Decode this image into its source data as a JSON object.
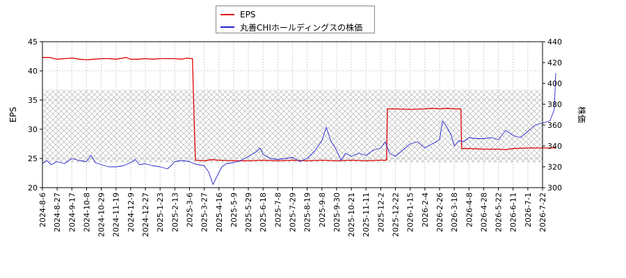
{
  "chart_data": {
    "type": "line",
    "title": "",
    "legend": {
      "placement": "top-center",
      "entries": [
        {
          "name": "EPS",
          "color": "#dd0000"
        },
        {
          "name": "丸善CHIホールディングスの株価",
          "color": "#2222cc"
        }
      ]
    },
    "left_axis": {
      "label": "EPS",
      "ylim": [
        20,
        45
      ],
      "ticks": [
        "20",
        "25",
        "30",
        "35",
        "40",
        "45"
      ]
    },
    "right_axis": {
      "label": "株価",
      "ylim": [
        300,
        440
      ],
      "ticks": [
        "300",
        "320",
        "340",
        "360",
        "380",
        "400",
        "420",
        "440"
      ]
    },
    "x_tick_labels": [
      "2024-8-6",
      "2024-8-27",
      "2024-9-17",
      "2024-10-8",
      "2024-10-29",
      "2024-11-19",
      "2024-12-9",
      "2024-12-27",
      "2025-1-23",
      "2025-2-13",
      "2025-3-6",
      "2025-3-27",
      "2025-4-16",
      "2025-5-9",
      "2025-5-29",
      "2025-6-18",
      "2025-7-8",
      "2025-7-29",
      "2025-8-19",
      "2025-9-8",
      "2025-9-30",
      "2025-10-21",
      "2025-11-11",
      "2025-12-2",
      "2025-12-22",
      "2026-1-15",
      "2026-2-4",
      "2026-2-26",
      "2026-3-18",
      "2026-4-8",
      "2026-4-28",
      "2026-5-22",
      "2026-6-11",
      "2026-7-1",
      "2026-7-22"
    ],
    "grid": true,
    "shaded_band": {
      "axis": "right",
      "from": 324,
      "to": 394
    },
    "series": [
      {
        "name": "EPS",
        "axis": "left",
        "color": "#dd0000",
        "points": [
          [
            0,
            42.3
          ],
          [
            0.5,
            42.3
          ],
          [
            1.0,
            42.0
          ],
          [
            1.5,
            42.1
          ],
          [
            2.0,
            42.2
          ],
          [
            2.5,
            42.0
          ],
          [
            3.0,
            41.9
          ],
          [
            3.5,
            42.0
          ],
          [
            4.0,
            42.1
          ],
          [
            4.5,
            42.1
          ],
          [
            5.0,
            42.0
          ],
          [
            5.5,
            42.2
          ],
          [
            5.7,
            42.3
          ],
          [
            6.0,
            42.0
          ],
          [
            6.5,
            42.0
          ],
          [
            7.0,
            42.1
          ],
          [
            7.5,
            42.0
          ],
          [
            8.0,
            42.1
          ],
          [
            8.5,
            42.1
          ],
          [
            9.0,
            42.1
          ],
          [
            9.5,
            42.0
          ],
          [
            9.8,
            42.2
          ],
          [
            10.2,
            42.1
          ],
          [
            10.3,
            33.0
          ],
          [
            10.4,
            24.7
          ],
          [
            11.0,
            24.6
          ],
          [
            11.5,
            24.8
          ],
          [
            12.0,
            24.7
          ],
          [
            13.0,
            24.6
          ],
          [
            14.0,
            24.6
          ],
          [
            15.0,
            24.7
          ],
          [
            16.0,
            24.6
          ],
          [
            17.0,
            24.7
          ],
          [
            18.0,
            24.6
          ],
          [
            19.0,
            24.7
          ],
          [
            20.0,
            24.6
          ],
          [
            21.0,
            24.7
          ],
          [
            22.0,
            24.6
          ],
          [
            23.0,
            24.7
          ],
          [
            23.4,
            24.7
          ],
          [
            23.45,
            33.5
          ],
          [
            24.0,
            33.5
          ],
          [
            25.0,
            33.4
          ],
          [
            26.0,
            33.5
          ],
          [
            26.5,
            33.6
          ],
          [
            27.0,
            33.5
          ],
          [
            27.5,
            33.6
          ],
          [
            28.0,
            33.5
          ],
          [
            28.45,
            33.5
          ],
          [
            28.5,
            26.7
          ],
          [
            29.0,
            26.7
          ],
          [
            30.0,
            26.6
          ],
          [
            31.0,
            26.6
          ],
          [
            31.5,
            26.5
          ],
          [
            32.0,
            26.7
          ],
          [
            33.0,
            26.8
          ],
          [
            34.0,
            26.8
          ],
          [
            34.9,
            26.8
          ]
        ]
      },
      {
        "name": "丸善CHIホールディングスの株価",
        "axis": "right",
        "color": "#2222cc",
        "points": [
          [
            0,
            323
          ],
          [
            0.3,
            326
          ],
          [
            0.6,
            322
          ],
          [
            1.0,
            325
          ],
          [
            1.5,
            323
          ],
          [
            2.0,
            328
          ],
          [
            2.5,
            326
          ],
          [
            3.0,
            325
          ],
          [
            3.3,
            331
          ],
          [
            3.6,
            324
          ],
          [
            4.0,
            322
          ],
          [
            4.5,
            320
          ],
          [
            5.0,
            320
          ],
          [
            5.5,
            321
          ],
          [
            6.0,
            324
          ],
          [
            6.3,
            327
          ],
          [
            6.6,
            322
          ],
          [
            7.0,
            323
          ],
          [
            7.5,
            321
          ],
          [
            8.0,
            320
          ],
          [
            8.5,
            318
          ],
          [
            8.8,
            322
          ],
          [
            9.0,
            325
          ],
          [
            9.5,
            326
          ],
          [
            10.0,
            325
          ],
          [
            10.3,
            323
          ],
          [
            10.6,
            322
          ],
          [
            11.0,
            321
          ],
          [
            11.3,
            315
          ],
          [
            11.6,
            303
          ],
          [
            11.9,
            312
          ],
          [
            12.2,
            320
          ],
          [
            12.5,
            323
          ],
          [
            13.0,
            324
          ],
          [
            13.5,
            326
          ],
          [
            14.0,
            330
          ],
          [
            14.5,
            334
          ],
          [
            14.8,
            338
          ],
          [
            15.0,
            332
          ],
          [
            15.5,
            328
          ],
          [
            16.0,
            327
          ],
          [
            16.5,
            328
          ],
          [
            17.0,
            329
          ],
          [
            17.5,
            325
          ],
          [
            18.0,
            328
          ],
          [
            18.5,
            335
          ],
          [
            19.0,
            345
          ],
          [
            19.3,
            358
          ],
          [
            19.6,
            345
          ],
          [
            20.0,
            336
          ],
          [
            20.3,
            326
          ],
          [
            20.6,
            333
          ],
          [
            21.0,
            330
          ],
          [
            21.5,
            333
          ],
          [
            22.0,
            331
          ],
          [
            22.5,
            336
          ],
          [
            23.0,
            338
          ],
          [
            23.3,
            344
          ],
          [
            23.6,
            333
          ],
          [
            24.0,
            330
          ],
          [
            24.5,
            336
          ],
          [
            25.0,
            342
          ],
          [
            25.5,
            344
          ],
          [
            26.0,
            338
          ],
          [
            26.5,
            342
          ],
          [
            27.0,
            346
          ],
          [
            27.2,
            364
          ],
          [
            27.5,
            358
          ],
          [
            27.8,
            350
          ],
          [
            28.0,
            340
          ],
          [
            28.3,
            345
          ],
          [
            28.6,
            344
          ],
          [
            29.0,
            348
          ],
          [
            29.5,
            347
          ],
          [
            30.0,
            347
          ],
          [
            30.5,
            348
          ],
          [
            31.0,
            346
          ],
          [
            31.5,
            355
          ],
          [
            32.0,
            350
          ],
          [
            32.5,
            348
          ],
          [
            33.0,
            354
          ],
          [
            33.5,
            360
          ],
          [
            34.0,
            362
          ],
          [
            34.5,
            364
          ],
          [
            34.8,
            375
          ],
          [
            34.9,
            410
          ]
        ]
      }
    ]
  }
}
